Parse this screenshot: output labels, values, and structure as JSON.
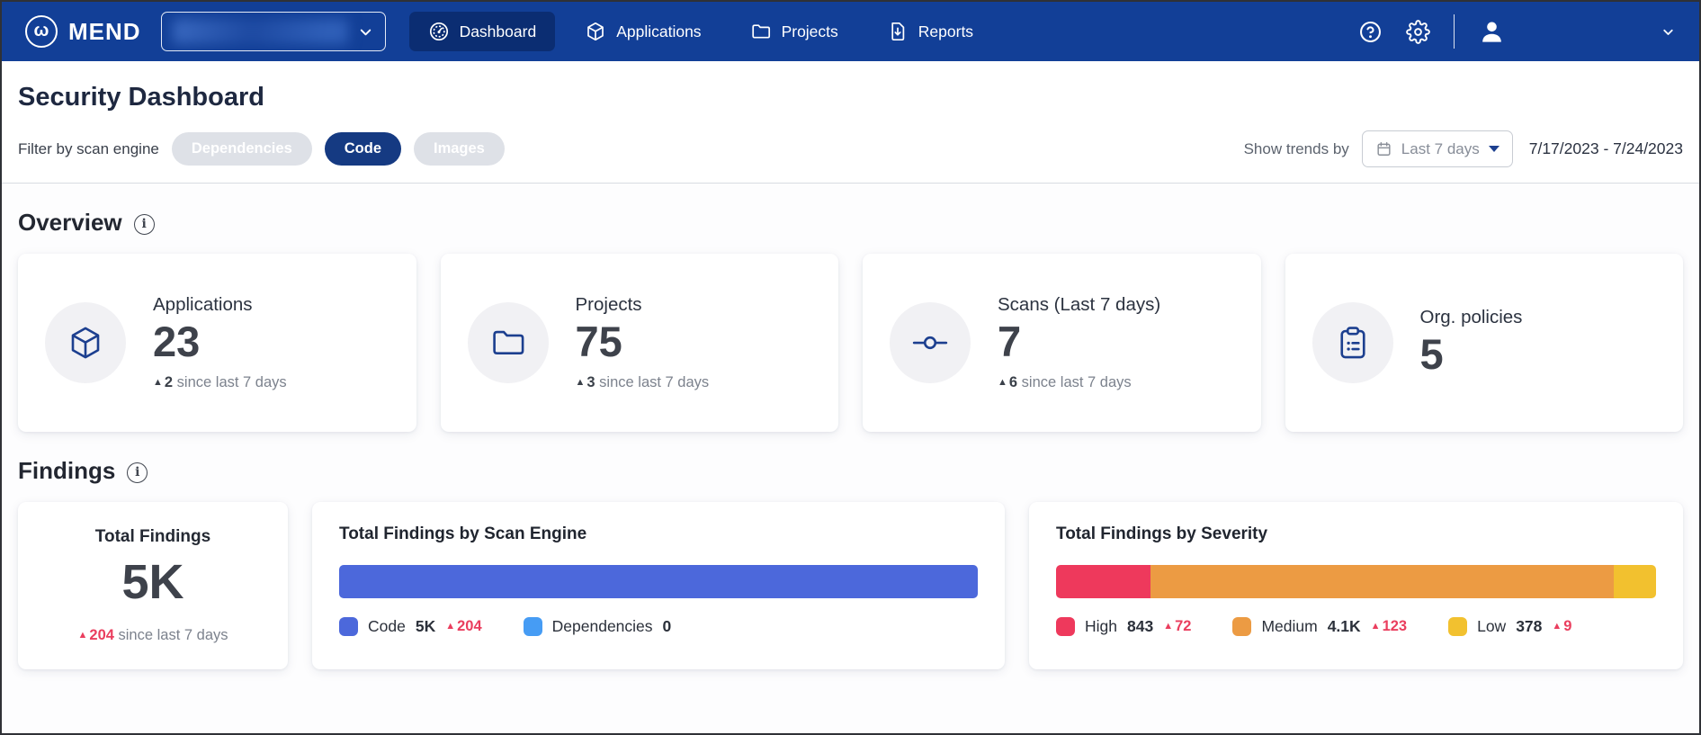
{
  "colors": {
    "topbar": "#123F97",
    "topbar_active": "#0B2D72",
    "pill_active": "#153A82",
    "pill_inactive": "#DEE1E7",
    "accent_blue": "#1C3F8F",
    "trend_pink": "#EA3E5E",
    "engine_code": "#4C68DB",
    "engine_dependencies": "#469CF4",
    "severity_high": "#EE395C",
    "severity_medium": "#EC9B43",
    "severity_low": "#F2C12F"
  },
  "nav": {
    "brand": "MEND",
    "items": [
      {
        "label": "Dashboard",
        "icon": "gauge-icon",
        "active": true
      },
      {
        "label": "Applications",
        "icon": "cube-icon",
        "active": false
      },
      {
        "label": "Projects",
        "icon": "folder-icon",
        "active": false
      },
      {
        "label": "Reports",
        "icon": "report-download-icon",
        "active": false
      }
    ]
  },
  "header": {
    "title": "Security Dashboard",
    "filter_label": "Filter by scan engine",
    "filters": [
      {
        "label": "Dependencies",
        "state": "inactive"
      },
      {
        "label": "Code",
        "state": "active"
      },
      {
        "label": "Images",
        "state": "inactive"
      }
    ],
    "trends_label": "Show trends by",
    "trends_value": "Last 7 days",
    "date_range": "7/17/2023 - 7/24/2023"
  },
  "overview": {
    "title": "Overview",
    "cards": [
      {
        "label": "Applications",
        "value": "23",
        "delta": "2",
        "delta_suffix": "since last 7 days",
        "icon": "cube-icon"
      },
      {
        "label": "Projects",
        "value": "75",
        "delta": "3",
        "delta_suffix": "since last 7 days",
        "icon": "folder-icon"
      },
      {
        "label": "Scans (Last 7 days)",
        "value": "7",
        "delta": "6",
        "delta_suffix": "since last 7 days",
        "icon": "scan-icon"
      },
      {
        "label": "Org. policies",
        "value": "5",
        "icon": "clipboard-icon"
      }
    ]
  },
  "findings": {
    "title": "Findings",
    "total": {
      "label": "Total Findings",
      "value": "5K",
      "delta": "204",
      "delta_suffix": "since last 7 days"
    },
    "by_engine": {
      "title": "Total Findings by Scan Engine",
      "segments": [
        {
          "label": "Code",
          "value": "5K",
          "delta": "204",
          "color": "#4C68DB",
          "percent": 100
        },
        {
          "label": "Dependencies",
          "value": "0",
          "color": "#469CF4",
          "percent": 0
        }
      ]
    },
    "by_severity": {
      "title": "Total Findings by Severity",
      "segments": [
        {
          "label": "High",
          "value": "843",
          "delta": "72",
          "color": "#EE395C",
          "percent": 15.8
        },
        {
          "label": "Medium",
          "value": "4.1K",
          "delta": "123",
          "color": "#EC9B43",
          "percent": 77.1
        },
        {
          "label": "Low",
          "value": "378",
          "delta": "9",
          "color": "#F2C12F",
          "percent": 7.1
        }
      ]
    }
  }
}
